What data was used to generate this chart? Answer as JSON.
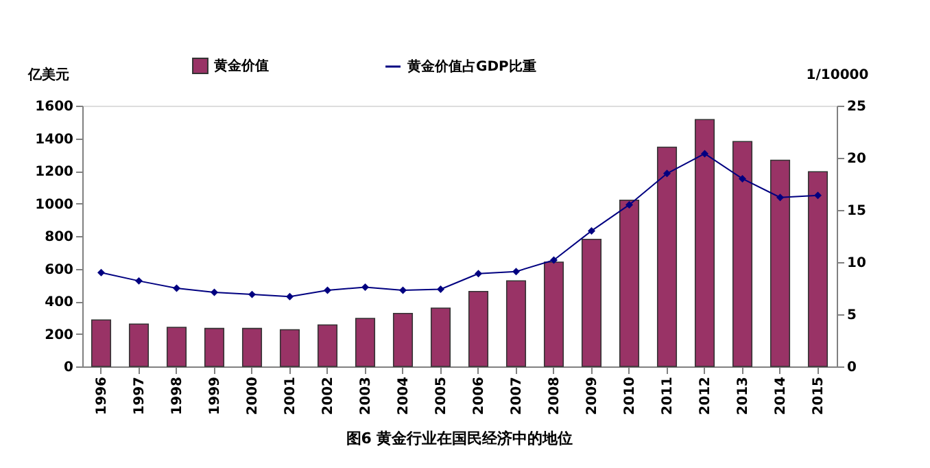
{
  "chart_data": {
    "type": "bar",
    "title": "图6 黄金行业在国民经济中的地位",
    "ylabel": "亿美元",
    "y2label": "1/10000",
    "categories": [
      "1996",
      "1997",
      "1998",
      "1999",
      "2000",
      "2001",
      "2002",
      "2003",
      "2004",
      "2005",
      "2006",
      "2007",
      "2008",
      "2009",
      "2010",
      "2011",
      "2012",
      "2013",
      "2014",
      "2015"
    ],
    "series": [
      {
        "name": "黄金价值",
        "color": "#993366",
        "values": [
          285,
          260,
          240,
          233,
          233,
          225,
          255,
          295,
          325,
          358,
          460,
          525,
          640,
          780,
          1020,
          1345,
          1515,
          1380,
          1265,
          1195
        ]
      },
      {
        "name": "黄金价值占GDP比重",
        "type": "line",
        "axis": "y2",
        "color": "#000080",
        "marker": "diamond",
        "values": [
          9.0,
          8.2,
          7.5,
          7.1,
          6.9,
          6.7,
          7.3,
          7.6,
          7.3,
          7.4,
          8.9,
          9.1,
          10.2,
          13.0,
          15.5,
          18.5,
          20.4,
          18.0,
          16.2,
          16.4
        ]
      }
    ],
    "ylim": [
      0,
      1600
    ],
    "yticks": [
      0,
      200,
      400,
      600,
      800,
      1000,
      1200,
      1400,
      1600
    ],
    "y2lim": [
      0,
      25
    ],
    "y2ticks": [
      0,
      5,
      10,
      15,
      20,
      25
    ],
    "grid": false,
    "legend": "top"
  }
}
